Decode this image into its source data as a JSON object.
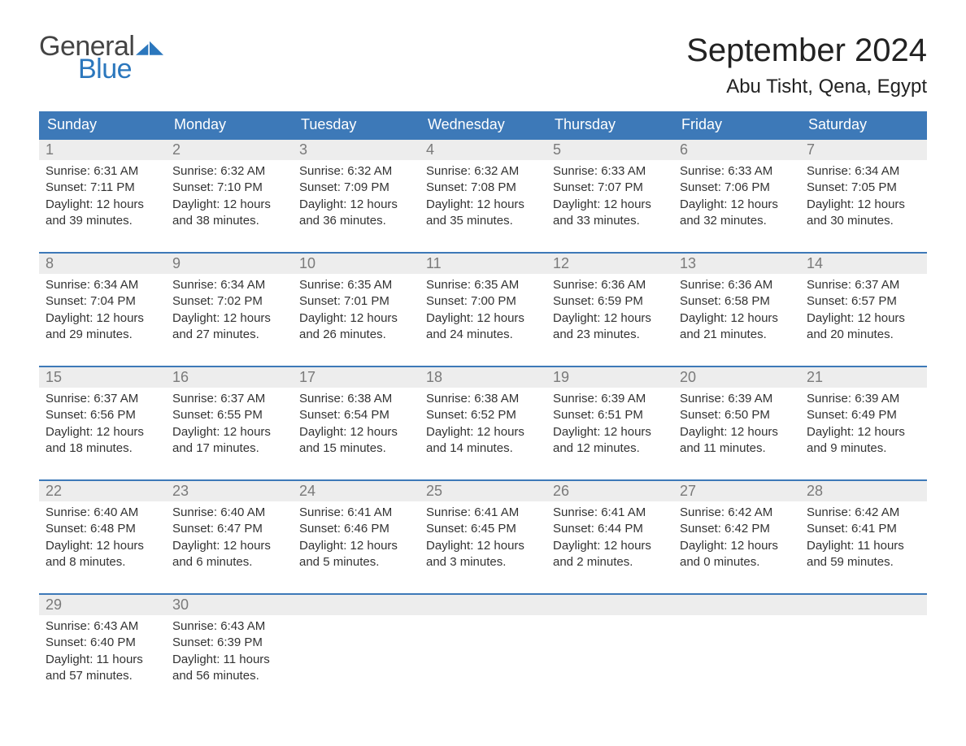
{
  "brand": {
    "word1": "General",
    "word2": "Blue",
    "word1_color": "#444444",
    "word2_color": "#2b77bd",
    "mark_color": "#2b77bd"
  },
  "title": "September 2024",
  "location": "Abu Tisht, Qena, Egypt",
  "colors": {
    "header_bg": "#3d79b8",
    "header_text": "#ffffff",
    "daynum_bg": "#ededed",
    "daynum_text": "#7a7a7a",
    "week_border": "#3d79b8",
    "body_text": "#333333",
    "page_bg": "#ffffff"
  },
  "weekdays": [
    "Sunday",
    "Monday",
    "Tuesday",
    "Wednesday",
    "Thursday",
    "Friday",
    "Saturday"
  ],
  "weeks": [
    [
      {
        "num": "1",
        "sunrise": "Sunrise: 6:31 AM",
        "sunset": "Sunset: 7:11 PM",
        "day1": "Daylight: 12 hours",
        "day2": "and 39 minutes."
      },
      {
        "num": "2",
        "sunrise": "Sunrise: 6:32 AM",
        "sunset": "Sunset: 7:10 PM",
        "day1": "Daylight: 12 hours",
        "day2": "and 38 minutes."
      },
      {
        "num": "3",
        "sunrise": "Sunrise: 6:32 AM",
        "sunset": "Sunset: 7:09 PM",
        "day1": "Daylight: 12 hours",
        "day2": "and 36 minutes."
      },
      {
        "num": "4",
        "sunrise": "Sunrise: 6:32 AM",
        "sunset": "Sunset: 7:08 PM",
        "day1": "Daylight: 12 hours",
        "day2": "and 35 minutes."
      },
      {
        "num": "5",
        "sunrise": "Sunrise: 6:33 AM",
        "sunset": "Sunset: 7:07 PM",
        "day1": "Daylight: 12 hours",
        "day2": "and 33 minutes."
      },
      {
        "num": "6",
        "sunrise": "Sunrise: 6:33 AM",
        "sunset": "Sunset: 7:06 PM",
        "day1": "Daylight: 12 hours",
        "day2": "and 32 minutes."
      },
      {
        "num": "7",
        "sunrise": "Sunrise: 6:34 AM",
        "sunset": "Sunset: 7:05 PM",
        "day1": "Daylight: 12 hours",
        "day2": "and 30 minutes."
      }
    ],
    [
      {
        "num": "8",
        "sunrise": "Sunrise: 6:34 AM",
        "sunset": "Sunset: 7:04 PM",
        "day1": "Daylight: 12 hours",
        "day2": "and 29 minutes."
      },
      {
        "num": "9",
        "sunrise": "Sunrise: 6:34 AM",
        "sunset": "Sunset: 7:02 PM",
        "day1": "Daylight: 12 hours",
        "day2": "and 27 minutes."
      },
      {
        "num": "10",
        "sunrise": "Sunrise: 6:35 AM",
        "sunset": "Sunset: 7:01 PM",
        "day1": "Daylight: 12 hours",
        "day2": "and 26 minutes."
      },
      {
        "num": "11",
        "sunrise": "Sunrise: 6:35 AM",
        "sunset": "Sunset: 7:00 PM",
        "day1": "Daylight: 12 hours",
        "day2": "and 24 minutes."
      },
      {
        "num": "12",
        "sunrise": "Sunrise: 6:36 AM",
        "sunset": "Sunset: 6:59 PM",
        "day1": "Daylight: 12 hours",
        "day2": "and 23 minutes."
      },
      {
        "num": "13",
        "sunrise": "Sunrise: 6:36 AM",
        "sunset": "Sunset: 6:58 PM",
        "day1": "Daylight: 12 hours",
        "day2": "and 21 minutes."
      },
      {
        "num": "14",
        "sunrise": "Sunrise: 6:37 AM",
        "sunset": "Sunset: 6:57 PM",
        "day1": "Daylight: 12 hours",
        "day2": "and 20 minutes."
      }
    ],
    [
      {
        "num": "15",
        "sunrise": "Sunrise: 6:37 AM",
        "sunset": "Sunset: 6:56 PM",
        "day1": "Daylight: 12 hours",
        "day2": "and 18 minutes."
      },
      {
        "num": "16",
        "sunrise": "Sunrise: 6:37 AM",
        "sunset": "Sunset: 6:55 PM",
        "day1": "Daylight: 12 hours",
        "day2": "and 17 minutes."
      },
      {
        "num": "17",
        "sunrise": "Sunrise: 6:38 AM",
        "sunset": "Sunset: 6:54 PM",
        "day1": "Daylight: 12 hours",
        "day2": "and 15 minutes."
      },
      {
        "num": "18",
        "sunrise": "Sunrise: 6:38 AM",
        "sunset": "Sunset: 6:52 PM",
        "day1": "Daylight: 12 hours",
        "day2": "and 14 minutes."
      },
      {
        "num": "19",
        "sunrise": "Sunrise: 6:39 AM",
        "sunset": "Sunset: 6:51 PM",
        "day1": "Daylight: 12 hours",
        "day2": "and 12 minutes."
      },
      {
        "num": "20",
        "sunrise": "Sunrise: 6:39 AM",
        "sunset": "Sunset: 6:50 PM",
        "day1": "Daylight: 12 hours",
        "day2": "and 11 minutes."
      },
      {
        "num": "21",
        "sunrise": "Sunrise: 6:39 AM",
        "sunset": "Sunset: 6:49 PM",
        "day1": "Daylight: 12 hours",
        "day2": "and 9 minutes."
      }
    ],
    [
      {
        "num": "22",
        "sunrise": "Sunrise: 6:40 AM",
        "sunset": "Sunset: 6:48 PM",
        "day1": "Daylight: 12 hours",
        "day2": "and 8 minutes."
      },
      {
        "num": "23",
        "sunrise": "Sunrise: 6:40 AM",
        "sunset": "Sunset: 6:47 PM",
        "day1": "Daylight: 12 hours",
        "day2": "and 6 minutes."
      },
      {
        "num": "24",
        "sunrise": "Sunrise: 6:41 AM",
        "sunset": "Sunset: 6:46 PM",
        "day1": "Daylight: 12 hours",
        "day2": "and 5 minutes."
      },
      {
        "num": "25",
        "sunrise": "Sunrise: 6:41 AM",
        "sunset": "Sunset: 6:45 PM",
        "day1": "Daylight: 12 hours",
        "day2": "and 3 minutes."
      },
      {
        "num": "26",
        "sunrise": "Sunrise: 6:41 AM",
        "sunset": "Sunset: 6:44 PM",
        "day1": "Daylight: 12 hours",
        "day2": "and 2 minutes."
      },
      {
        "num": "27",
        "sunrise": "Sunrise: 6:42 AM",
        "sunset": "Sunset: 6:42 PM",
        "day1": "Daylight: 12 hours",
        "day2": "and 0 minutes."
      },
      {
        "num": "28",
        "sunrise": "Sunrise: 6:42 AM",
        "sunset": "Sunset: 6:41 PM",
        "day1": "Daylight: 11 hours",
        "day2": "and 59 minutes."
      }
    ],
    [
      {
        "num": "29",
        "sunrise": "Sunrise: 6:43 AM",
        "sunset": "Sunset: 6:40 PM",
        "day1": "Daylight: 11 hours",
        "day2": "and 57 minutes."
      },
      {
        "num": "30",
        "sunrise": "Sunrise: 6:43 AM",
        "sunset": "Sunset: 6:39 PM",
        "day1": "Daylight: 11 hours",
        "day2": "and 56 minutes."
      },
      {
        "num": "",
        "sunrise": "",
        "sunset": "",
        "day1": "",
        "day2": ""
      },
      {
        "num": "",
        "sunrise": "",
        "sunset": "",
        "day1": "",
        "day2": ""
      },
      {
        "num": "",
        "sunrise": "",
        "sunset": "",
        "day1": "",
        "day2": ""
      },
      {
        "num": "",
        "sunrise": "",
        "sunset": "",
        "day1": "",
        "day2": ""
      },
      {
        "num": "",
        "sunrise": "",
        "sunset": "",
        "day1": "",
        "day2": ""
      }
    ]
  ]
}
